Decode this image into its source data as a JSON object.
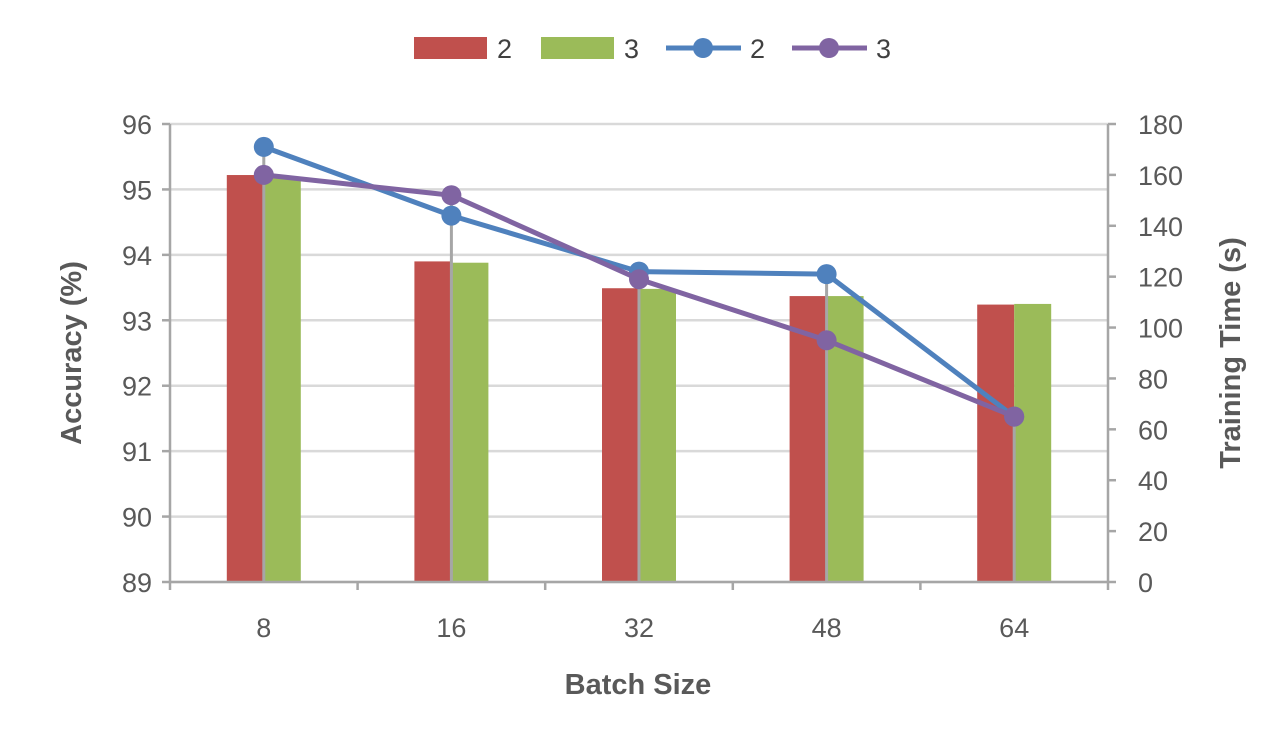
{
  "chart_data": {
    "type": "bar",
    "categories": [
      "8",
      "16",
      "32",
      "48",
      "64"
    ],
    "xlabel": "Batch Size",
    "ylabel": "Accuracy (%)",
    "y2label": "Training Time (s)",
    "ylim": [
      89,
      96
    ],
    "y2lim": [
      0,
      180
    ],
    "yticks": [
      "89",
      "90",
      "91",
      "92",
      "93",
      "94",
      "95",
      "96"
    ],
    "y2ticks": [
      "0",
      "20",
      "40",
      "60",
      "80",
      "100",
      "120",
      "140",
      "160",
      "180"
    ],
    "grid": true,
    "legend_position": "top-center",
    "bar_series": [
      {
        "name": "2",
        "axis": "left",
        "color": "#C0504D",
        "values": [
          95.22,
          93.9,
          93.49,
          93.37,
          93.24
        ]
      },
      {
        "name": "3",
        "axis": "left",
        "color": "#9BBB59",
        "values": [
          95.18,
          93.88,
          93.48,
          93.37,
          93.25
        ]
      }
    ],
    "line_series": [
      {
        "name": "2",
        "axis": "right",
        "color": "#4F81BD",
        "values": [
          171,
          144,
          122,
          121,
          65
        ]
      },
      {
        "name": "3",
        "axis": "right",
        "color": "#8064A2",
        "values": [
          160,
          152,
          119,
          95,
          65
        ]
      }
    ],
    "error_bars": {
      "color": "#A6A6A6",
      "upper_right_axis": [
        171,
        152,
        122,
        121,
        66
      ],
      "lower_right_axis": [
        0,
        0,
        0,
        0,
        0
      ]
    }
  }
}
